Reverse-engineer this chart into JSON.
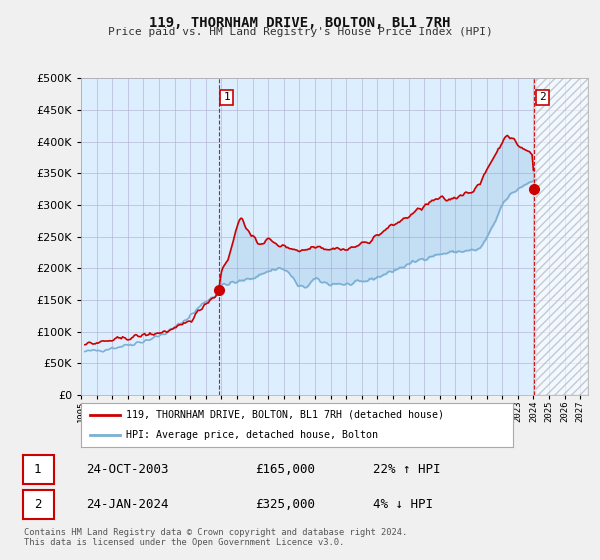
{
  "title": "119, THORNHAM DRIVE, BOLTON, BL1 7RH",
  "subtitle": "Price paid vs. HM Land Registry's House Price Index (HPI)",
  "legend_label_red": "119, THORNHAM DRIVE, BOLTON, BL1 7RH (detached house)",
  "legend_label_blue": "HPI: Average price, detached house, Bolton",
  "footnote": "Contains HM Land Registry data © Crown copyright and database right 2024.\nThis data is licensed under the Open Government Licence v3.0.",
  "point1_date": "24-OCT-2003",
  "point1_price": "£165,000",
  "point1_hpi": "22% ↑ HPI",
  "point2_date": "24-JAN-2024",
  "point2_price": "£325,000",
  "point2_hpi": "4% ↓ HPI",
  "red_color": "#cc0000",
  "blue_color": "#7bafd4",
  "fill_color": "#d0e8f8",
  "bg_color": "#f0f0f0",
  "plot_bg_color": "#ddeeff",
  "grid_color": "#aaaacc",
  "hatch_color": "#bbbbcc",
  "ylim": [
    0,
    500000
  ],
  "yticks": [
    0,
    50000,
    100000,
    150000,
    200000,
    250000,
    300000,
    350000,
    400000,
    450000,
    500000
  ],
  "xlim_start": 1995.25,
  "xlim_end": 2027.5,
  "marker1_x": 2003.82,
  "marker1_y": 165000,
  "marker2_x": 2024.07,
  "marker2_y": 325000,
  "vline1_x": 2003.82,
  "vline2_x": 2024.07,
  "future_start": 2024.17
}
